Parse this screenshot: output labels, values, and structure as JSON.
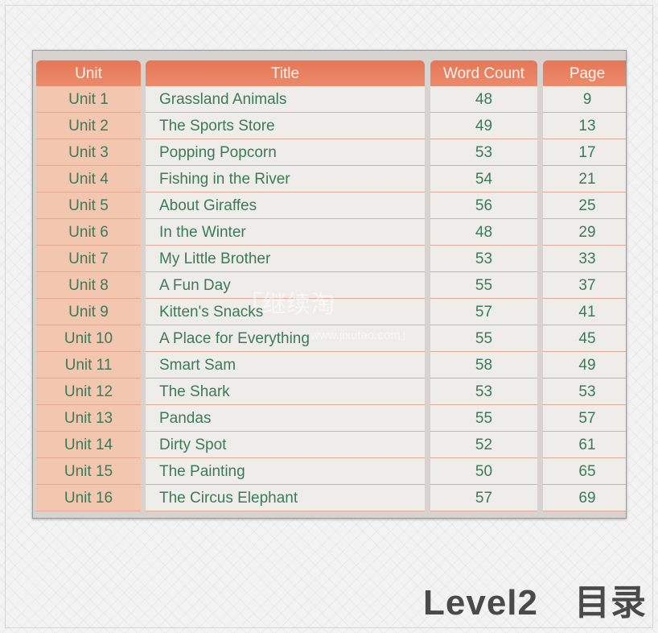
{
  "table": {
    "headers": {
      "unit": "Unit",
      "title": "Title",
      "word_count": "Word Count",
      "page": "Page"
    },
    "rows": [
      {
        "unit": "Unit 1",
        "title": "Grassland Animals",
        "word_count": "48",
        "page": "9"
      },
      {
        "unit": "Unit 2",
        "title": "The Sports Store",
        "word_count": "49",
        "page": "13"
      },
      {
        "unit": "Unit 3",
        "title": "Popping Popcorn",
        "word_count": "53",
        "page": "17"
      },
      {
        "unit": "Unit 4",
        "title": "Fishing in the River",
        "word_count": "54",
        "page": "21"
      },
      {
        "unit": "Unit 5",
        "title": "About Giraffes",
        "word_count": "56",
        "page": "25"
      },
      {
        "unit": "Unit 6",
        "title": "In the Winter",
        "word_count": "48",
        "page": "29"
      },
      {
        "unit": "Unit 7",
        "title": "My Little Brother",
        "word_count": "53",
        "page": "33"
      },
      {
        "unit": "Unit 8",
        "title": "A Fun Day",
        "word_count": "55",
        "page": "37"
      },
      {
        "unit": "Unit 9",
        "title": "Kitten's Snacks",
        "word_count": "57",
        "page": "41"
      },
      {
        "unit": "Unit 10",
        "title": "A Place for Everything",
        "word_count": "55",
        "page": "45"
      },
      {
        "unit": "Unit 11",
        "title": "Smart Sam",
        "word_count": "58",
        "page": "49"
      },
      {
        "unit": "Unit 12",
        "title": "The Shark",
        "word_count": "53",
        "page": "53"
      },
      {
        "unit": "Unit 13",
        "title": "Pandas",
        "word_count": "55",
        "page": "57"
      },
      {
        "unit": "Unit 14",
        "title": "Dirty Spot",
        "word_count": "52",
        "page": "61"
      },
      {
        "unit": "Unit 15",
        "title": "The Painting",
        "word_count": "50",
        "page": "65"
      },
      {
        "unit": "Unit 16",
        "title": "The Circus Elephant",
        "word_count": "57",
        "page": "69"
      }
    ]
  },
  "watermark": {
    "text": "「继续淘",
    "url": "www.jixutao.com」"
  },
  "caption": "Level2　目录",
  "colors": {
    "header": "#e57757",
    "unit_cell": "#f3c6b0",
    "text": "#3d7a57"
  }
}
